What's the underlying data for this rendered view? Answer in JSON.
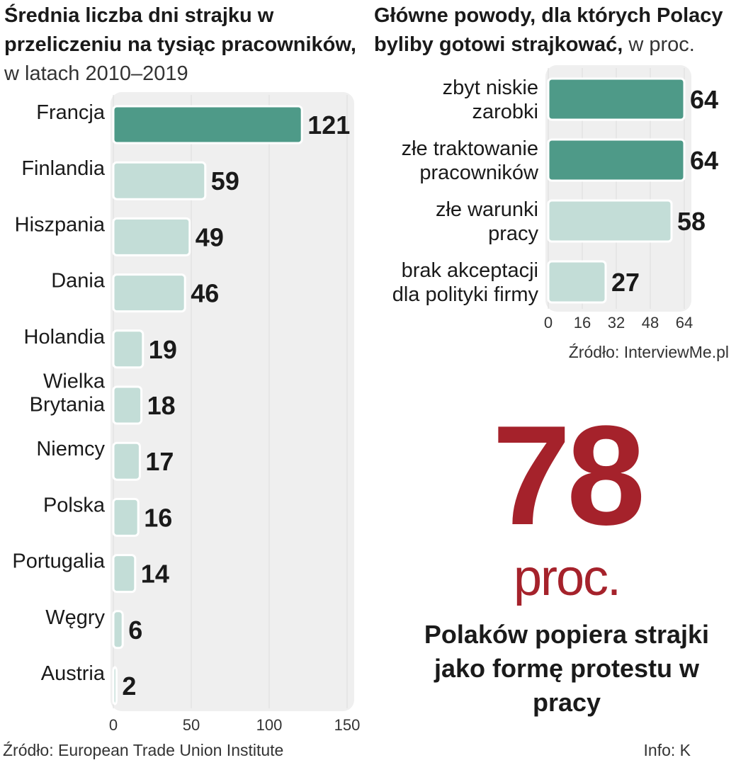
{
  "left_chart": {
    "title_bold": "Średnia liczba dni strajku w przeliczeniu na tysiąc pracowników,",
    "title_light": " w latach 2010–2019",
    "source": "Źródło: European Trade Union Institute"
  },
  "right_chart": {
    "title_bold": "Główne powody, dla których Polacy byliby gotowi strajkować,",
    "title_light": " w proc.",
    "source": "Źródło: InterviewMe.pl"
  },
  "highlight": {
    "number": "78",
    "unit": "proc.",
    "caption": "Polaków popiera strajki jako formę protestu w pracy"
  },
  "info": "Info: K",
  "colors": {
    "bar_highlight": "#4e9a88",
    "bar_normal": "#c3ddd7",
    "bar_border": "#ffffff",
    "panel_bg": "#efefef",
    "big_number": "#a5222b"
  },
  "chart_data": [
    {
      "type": "bar",
      "orientation": "horizontal",
      "title": "Średnia liczba dni strajku w przeliczeniu na tysiąc pracowników, w latach 2010–2019",
      "categories": [
        "Francja",
        "Finlandia",
        "Hiszpania",
        "Dania",
        "Holandia",
        "Wielka Brytania",
        "Niemcy",
        "Polska",
        "Portugalia",
        "Węgry",
        "Austria"
      ],
      "category_lines": [
        [
          "Francja"
        ],
        [
          "Finlandia"
        ],
        [
          "Hiszpania"
        ],
        [
          "Dania"
        ],
        [
          "Holandia"
        ],
        [
          "Wielka",
          "Brytania"
        ],
        [
          "Niemcy"
        ],
        [
          "Polska"
        ],
        [
          "Portugalia"
        ],
        [
          "Węgry"
        ],
        [
          "Austria"
        ]
      ],
      "values": [
        121,
        59,
        49,
        46,
        19,
        18,
        17,
        16,
        14,
        6,
        2
      ],
      "highlighted": [
        true,
        false,
        false,
        false,
        false,
        false,
        false,
        false,
        false,
        false,
        false
      ],
      "xlim": [
        0,
        150
      ],
      "xticks": [
        0,
        50,
        100,
        150
      ],
      "grid": true
    },
    {
      "type": "bar",
      "orientation": "horizontal",
      "title": "Główne powody, dla których Polacy byliby gotowi strajkować, w proc.",
      "categories": [
        "zbyt niskie zarobki",
        "złe traktowanie pracowników",
        "złe warunki pracy",
        "brak akceptacji dla polityki firmy"
      ],
      "category_lines": [
        [
          "zbyt niskie",
          "zarobki"
        ],
        [
          "złe traktowanie",
          "pracowników"
        ],
        [
          "złe warunki",
          "pracy"
        ],
        [
          "brak akceptacji",
          "dla polityki firmy"
        ]
      ],
      "values": [
        64,
        64,
        58,
        27
      ],
      "highlighted": [
        true,
        true,
        false,
        false
      ],
      "xlim": [
        0,
        64
      ],
      "xticks": [
        0,
        16,
        32,
        48,
        64
      ],
      "grid": true
    }
  ]
}
